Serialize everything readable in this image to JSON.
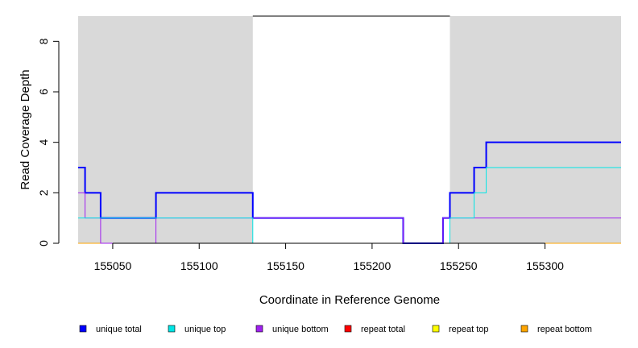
{
  "chart_data": {
    "type": "line",
    "title": "",
    "xlabel": "Coordinate in Reference Genome",
    "ylabel": "Read Coverage Depth",
    "xlim": [
      155030,
      155344
    ],
    "ylim": [
      0,
      9
    ],
    "x_ticks": [
      155050,
      155100,
      155150,
      155200,
      155250,
      155300
    ],
    "y_ticks": [
      0,
      2,
      4,
      6,
      8
    ],
    "shaded_regions": [
      [
        155030,
        155131
      ],
      [
        155245,
        155344
      ]
    ],
    "top_line": {
      "y": 9,
      "from": 155131,
      "to": 155245,
      "color": "#000000"
    },
    "grid": false,
    "legend_position": "bottom",
    "series": [
      {
        "name": "unique total",
        "color": "#0000ff",
        "line_width": 2,
        "steps": [
          [
            155030,
            3
          ],
          [
            155034,
            2
          ],
          [
            155043,
            1
          ],
          [
            155075,
            2
          ],
          [
            155131,
            1
          ],
          [
            155218,
            0
          ],
          [
            155241,
            1
          ],
          [
            155245,
            2
          ],
          [
            155259,
            3
          ],
          [
            155266,
            4
          ],
          [
            155344,
            4
          ]
        ]
      },
      {
        "name": "unique top",
        "color": "#00e5e5",
        "line_width": 1,
        "steps": [
          [
            155030,
            1
          ],
          [
            155075,
            1
          ],
          [
            155131,
            0
          ],
          [
            155245,
            1
          ],
          [
            155259,
            2
          ],
          [
            155266,
            3
          ],
          [
            155344,
            3
          ]
        ]
      },
      {
        "name": "unique bottom",
        "color": "#a020f0",
        "line_width": 1,
        "steps": [
          [
            155030,
            2
          ],
          [
            155034,
            1
          ],
          [
            155043,
            0
          ],
          [
            155075,
            1
          ],
          [
            155218,
            0
          ],
          [
            155241,
            1
          ],
          [
            155344,
            1
          ]
        ]
      },
      {
        "name": "repeat total",
        "color": "#ff0000",
        "line_width": 1,
        "steps": [
          [
            155030,
            0
          ],
          [
            155344,
            0
          ]
        ]
      },
      {
        "name": "repeat top",
        "color": "#ffff00",
        "line_width": 1,
        "steps": [
          [
            155030,
            0
          ],
          [
            155344,
            0
          ]
        ]
      },
      {
        "name": "repeat bottom",
        "color": "#ffa500",
        "line_width": 1,
        "steps": [
          [
            155030,
            0
          ],
          [
            155344,
            0
          ]
        ]
      }
    ]
  }
}
